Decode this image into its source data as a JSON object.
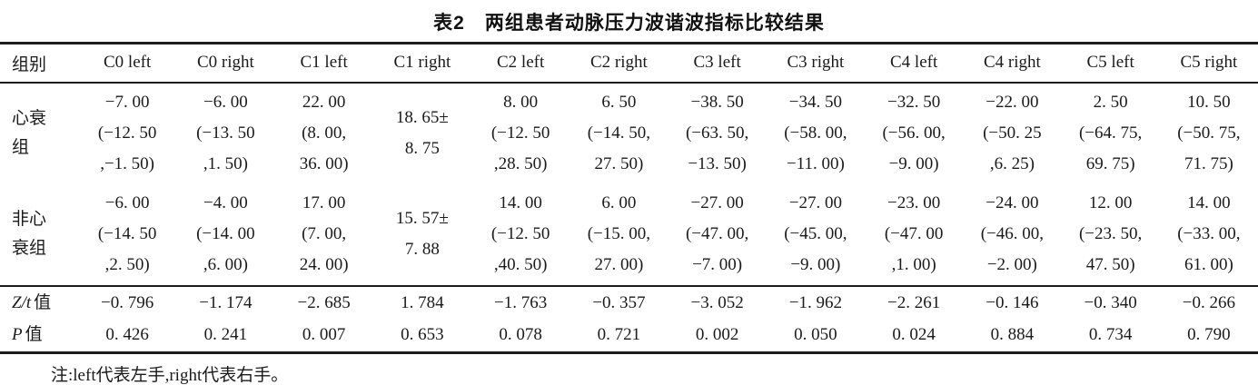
{
  "title": "表2　两组患者动脉压力波谐波指标比较结果",
  "note": "注:left代表左手,right代表右手。",
  "colors": {
    "text": "#1a1a1a",
    "rule": "#1c1c1c",
    "background": "#ffffff"
  },
  "table": {
    "header": [
      "组别",
      "C0 left",
      "C0 right",
      "C1 left",
      "C1 right",
      "C2 left",
      "C2 right",
      "C3 left",
      "C3 right",
      "C4 left",
      "C4 right",
      "C5 left",
      "C5 right"
    ],
    "rows": [
      {
        "label": "心衰\n组",
        "cells": [
          "−7. 00\n(−12. 50\n,−1. 50)",
          "−6. 00\n(−13. 50\n,1. 50)",
          "22. 00\n(8. 00,\n36. 00)",
          "18. 65±\n8. 75",
          "8. 00\n(−12. 50\n,28. 50)",
          "6. 50\n(−14. 50,\n27. 50)",
          "−38. 50\n(−63. 50,\n−13. 50)",
          "−34. 50\n(−58. 00,\n−11. 00)",
          "−32. 50\n(−56. 00,\n−9. 00)",
          "−22. 00\n(−50. 25\n,6. 25)",
          "2. 50\n(−64. 75,\n69. 75)",
          "10. 50\n(−50. 75,\n71. 75)"
        ]
      },
      {
        "label": "非心\n衰组",
        "cells": [
          "−6. 00\n(−14. 50\n,2. 50)",
          "−4. 00\n(−14. 00\n,6. 00)",
          "17. 00\n(7. 00,\n24. 00)",
          "15. 57±\n7. 88",
          "14. 00\n(−12. 50\n,40. 50)",
          "6. 00\n(−15. 00,\n27. 00)",
          "−27. 00\n(−47. 00,\n−7. 00)",
          "−27. 00\n(−45. 00,\n−9. 00)",
          "−23. 00\n(−47. 00\n,1. 00)",
          "−24. 00\n(−46. 00,\n−2. 00)",
          "12. 00\n(−23. 50,\n47. 50)",
          "14. 00\n(−33. 00,\n61. 00)"
        ]
      },
      {
        "label_it": "Z/t",
        "label_cn": "值",
        "cells": [
          "−0. 796",
          "−1. 174",
          "−2. 685",
          "1. 784",
          "−1. 763",
          "−0. 357",
          "−3. 052",
          "−1. 962",
          "−2. 261",
          "−0. 146",
          "−0. 340",
          "−0. 266"
        ]
      },
      {
        "label_it": "P",
        "label_cn": "值",
        "cells": [
          "0. 426",
          "0. 241",
          "0. 007",
          "0. 653",
          "0. 078",
          "0. 721",
          "0. 002",
          "0. 050",
          "0. 024",
          "0. 884",
          "0. 734",
          "0. 790"
        ]
      }
    ]
  }
}
